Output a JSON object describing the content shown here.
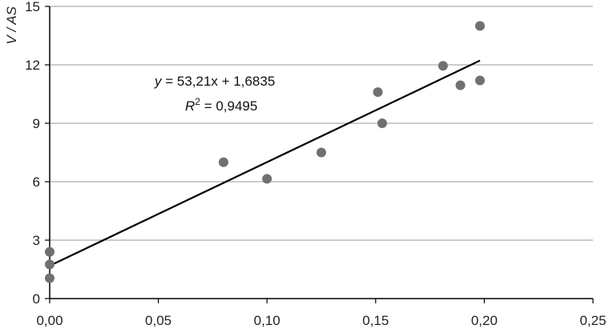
{
  "chart_data": {
    "type": "scatter",
    "title": "",
    "xlabel": "",
    "ylabel": "V / AS",
    "xlim": [
      0,
      0.25
    ],
    "ylim": [
      0,
      15
    ],
    "x_ticks": [
      0,
      0.05,
      0.1,
      0.15,
      0.2,
      0.25
    ],
    "x_tick_labels": [
      "0,00",
      "0,05",
      "0,10",
      "0,15",
      "0,20",
      "0,25"
    ],
    "y_ticks": [
      0,
      3,
      6,
      9,
      12,
      15
    ],
    "y_tick_labels": [
      "0",
      "3",
      "6",
      "9",
      "12",
      "15"
    ],
    "grid": {
      "horizontal": true,
      "vertical": false
    },
    "marker_color": "#707070",
    "line_color": "#000000",
    "grid_color": "#9a9a9a",
    "points": [
      {
        "x": 0.0,
        "y": 2.4
      },
      {
        "x": 0.0,
        "y": 1.75
      },
      {
        "x": 0.0,
        "y": 1.05
      },
      {
        "x": 0.08,
        "y": 7.0
      },
      {
        "x": 0.1,
        "y": 6.15
      },
      {
        "x": 0.125,
        "y": 7.5
      },
      {
        "x": 0.151,
        "y": 10.6
      },
      {
        "x": 0.153,
        "y": 9.0
      },
      {
        "x": 0.181,
        "y": 11.95
      },
      {
        "x": 0.189,
        "y": 10.95
      },
      {
        "x": 0.198,
        "y": 11.2
      },
      {
        "x": 0.198,
        "y": 14.0
      }
    ],
    "trendline": {
      "slope": 53.21,
      "intercept": 1.6835,
      "x_start": 0.0,
      "x_end": 0.198,
      "equation_lhs": "y",
      "equation_rhs": " = 53,21x + 1,6835",
      "r2_symbol": "R",
      "r2_exponent": "2",
      "r2_rhs": " = 0,9495"
    }
  }
}
